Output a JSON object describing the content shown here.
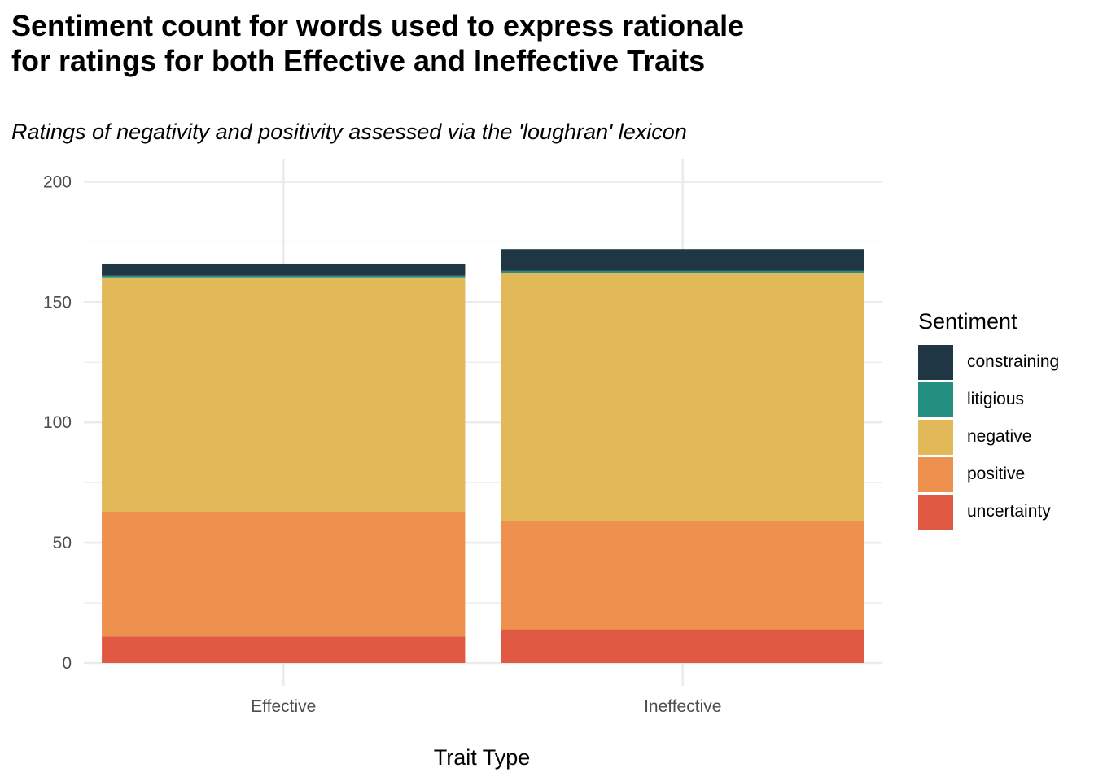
{
  "chart_data": {
    "type": "bar",
    "stacked": true,
    "title_lines": [
      "Sentiment count for words used to express rationale",
      "for ratings for both Effective and Ineffective Traits"
    ],
    "subtitle": "Ratings of negativity and positivity assessed via the 'loughran' lexicon",
    "xlabel": "Trait Type",
    "ylabel": "",
    "ylim": [
      0,
      205
    ],
    "y_ticks": [
      0,
      50,
      100,
      150,
      200
    ],
    "grid": true,
    "categories": [
      "Effective",
      "Ineffective"
    ],
    "series": [
      {
        "name": "uncertainty",
        "color": "#E05A43",
        "values": [
          11,
          14
        ]
      },
      {
        "name": "positive",
        "color": "#EE914E",
        "values": [
          52,
          45
        ]
      },
      {
        "name": "negative",
        "color": "#E2B958",
        "values": [
          97,
          103
        ]
      },
      {
        "name": "litigious",
        "color": "#238F81",
        "values": [
          1,
          1
        ]
      },
      {
        "name": "constraining",
        "color": "#1F3645",
        "values": [
          5,
          9
        ]
      }
    ],
    "legend": {
      "title": "Sentiment",
      "position": "right",
      "order": [
        "constraining",
        "litigious",
        "negative",
        "positive",
        "uncertainty"
      ]
    }
  }
}
